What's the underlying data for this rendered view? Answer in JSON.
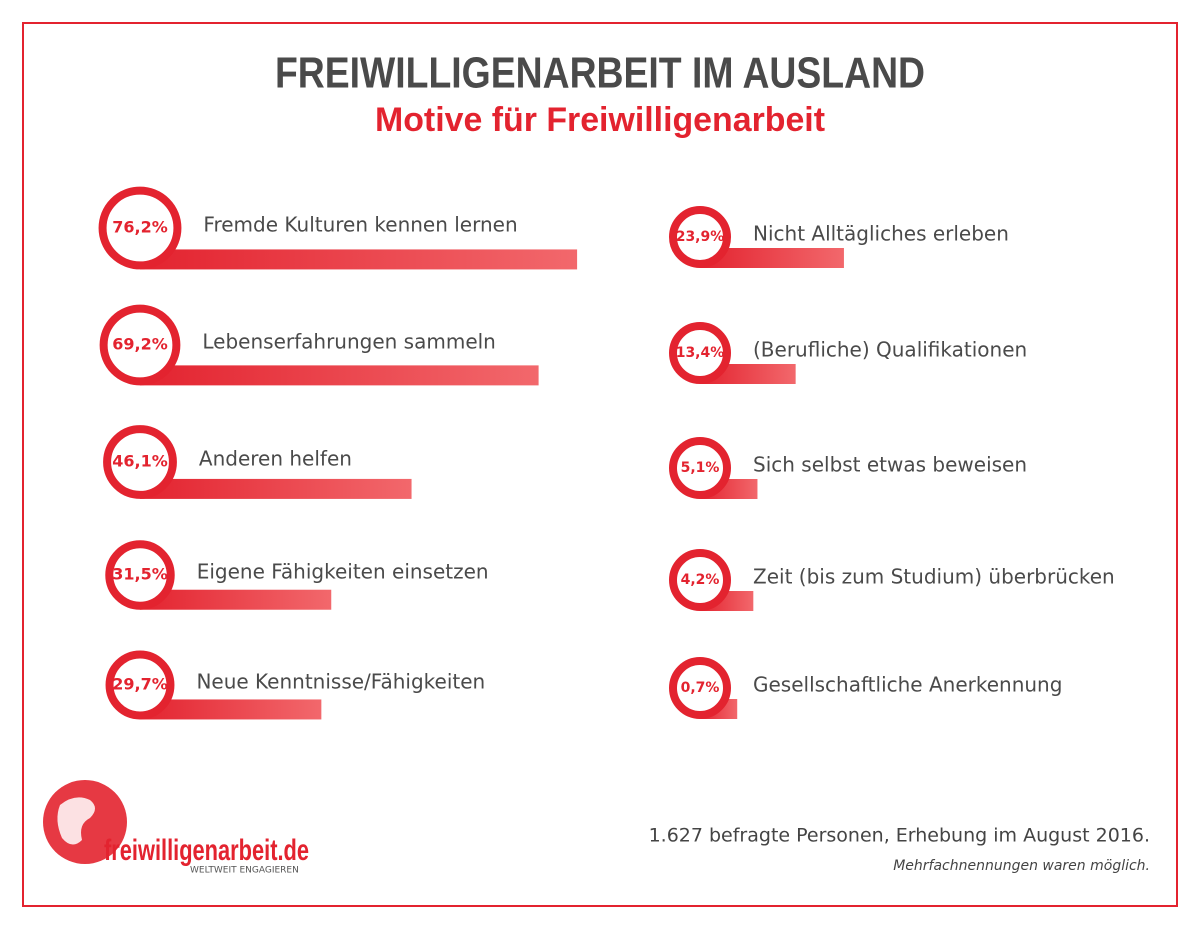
{
  "chart_data": {
    "type": "bar",
    "title": "FREIWILLIGENARBEIT IM AUSLAND",
    "subtitle": "Motive für Freiwilligenarbeit",
    "categories": [
      "Fremde Kulturen kennen lernen",
      "Lebenserfahrungen sammeln",
      "Anderen helfen",
      "Eigene Fähigkeiten einsetzen",
      "Neue Kenntnisse/Fähigkeiten",
      "Nicht Alltägliches erleben",
      "(Berufliche) Qualifikationen",
      "Sich selbst etwas beweisen",
      "Zeit (bis zum Studium) überbrücken",
      "Gesellschaftliche Anerkennung"
    ],
    "values": [
      76.2,
      69.2,
      46.1,
      31.5,
      29.7,
      23.9,
      13.4,
      5.1,
      4.2,
      0.7
    ],
    "value_labels": [
      "76,2%",
      "69,2%",
      "46,1%",
      "31,5%",
      "29,7%",
      "23,9%",
      "13,4%",
      "5,1%",
      "4,2%",
      "0,7%"
    ],
    "color": "#e3232f",
    "footnote": "1.627 befragte Personen, Erhebung im August 2016.",
    "note": "Mehrfachnennungen waren möglich."
  },
  "logo": {
    "name": "freiwilligenarbeit.de",
    "tagline": "WELTWEIT ENGAGIEREN"
  }
}
